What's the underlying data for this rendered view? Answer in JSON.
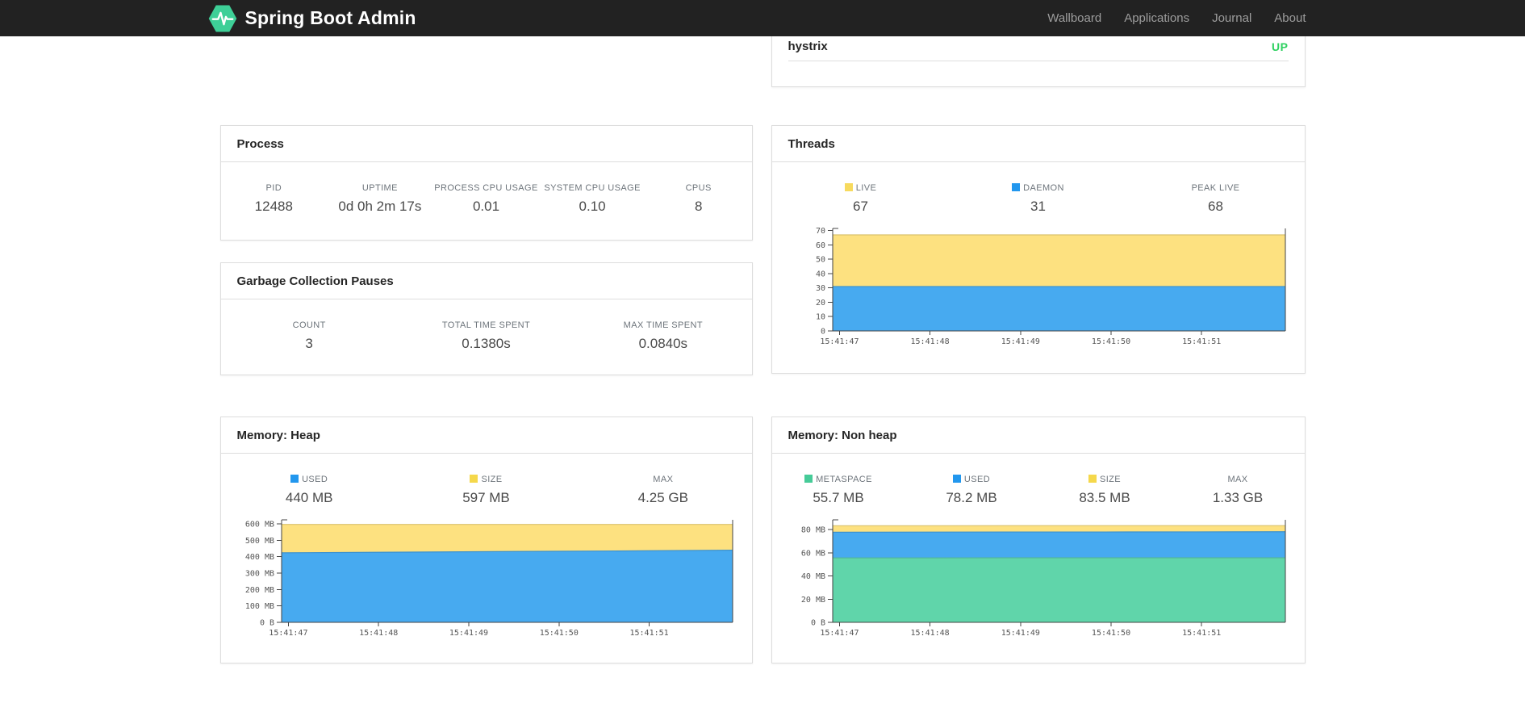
{
  "navbar": {
    "brand": "Spring Boot Admin",
    "items": [
      {
        "label": "Wallboard"
      },
      {
        "label": "Applications"
      },
      {
        "label": "Journal"
      },
      {
        "label": "About"
      }
    ]
  },
  "colors": {
    "brand_green": "#3ecf97",
    "status_up": "#2ed160",
    "chart_yellow": "#fde180",
    "chart_blue": "#47aaf0",
    "chart_green": "#60d5aa",
    "navbar_bg": "#222222"
  },
  "health_card": {
    "service": "hystrix",
    "status": "UP"
  },
  "cards": {
    "process": {
      "title": "Process",
      "stats": [
        {
          "label": "PID",
          "value": "12488"
        },
        {
          "label": "UPTIME",
          "value": "0d 0h 2m 17s"
        },
        {
          "label": "PROCESS CPU USAGE",
          "value": "0.01"
        },
        {
          "label": "SYSTEM CPU USAGE",
          "value": "0.10"
        },
        {
          "label": "CPUS",
          "value": "8"
        }
      ]
    },
    "gc": {
      "title": "Garbage Collection Pauses",
      "stats": [
        {
          "label": "COUNT",
          "value": "3"
        },
        {
          "label": "TOTAL TIME SPENT",
          "value": "0.1380s"
        },
        {
          "label": "MAX TIME SPENT",
          "value": "0.0840s"
        }
      ]
    },
    "threads": {
      "title": "Threads",
      "stats": [
        {
          "label": "LIVE",
          "value": "67",
          "swatch": "#f7da5e"
        },
        {
          "label": "DAEMON",
          "value": "31",
          "swatch": "#2297ee"
        },
        {
          "label": "PEAK LIVE",
          "value": "68"
        }
      ]
    },
    "heap": {
      "title": "Memory: Heap",
      "stats": [
        {
          "label": "USED",
          "value": "440 MB",
          "swatch": "#2297ee"
        },
        {
          "label": "SIZE",
          "value": "597 MB",
          "swatch": "#f5d84b"
        },
        {
          "label": "MAX",
          "value": "4.25 GB"
        }
      ]
    },
    "nonheap": {
      "title": "Memory: Non heap",
      "stats": [
        {
          "label": "METASPACE",
          "value": "55.7 MB",
          "swatch": "#46cb98"
        },
        {
          "label": "USED",
          "value": "78.2 MB",
          "swatch": "#2297ee"
        },
        {
          "label": "SIZE",
          "value": "83.5 MB",
          "swatch": "#f5d84b"
        },
        {
          "label": "MAX",
          "value": "1.33 GB"
        }
      ]
    }
  },
  "chart_data": [
    {
      "id": "threads",
      "type": "area",
      "title": "Threads",
      "x_labels": [
        "15:41:47",
        "15:41:48",
        "15:41:49",
        "15:41:50",
        "15:41:51"
      ],
      "ylim": [
        0,
        71.5
      ],
      "yticks": {
        "values": [
          0,
          10,
          20,
          30,
          40,
          50,
          60,
          70
        ],
        "labels": [
          "0",
          "10",
          "20",
          "30",
          "40",
          "50",
          "60",
          "70"
        ]
      },
      "series": [
        {
          "name": "LIVE",
          "color": "#fde180",
          "values": [
            67,
            67,
            67,
            67,
            67,
            67
          ]
        },
        {
          "name": "DAEMON",
          "color": "#47aaf0",
          "values": [
            31,
            31,
            31,
            31,
            31,
            31
          ]
        }
      ],
      "stack_mode": "absolute",
      "grid": false,
      "legend_position": "above-as-stats"
    },
    {
      "id": "memory-heap",
      "type": "area",
      "title": "Memory: Heap",
      "x_labels": [
        "15:41:47",
        "15:41:48",
        "15:41:49",
        "15:41:50",
        "15:41:51"
      ],
      "ylim": [
        0,
        625
      ],
      "yticks": {
        "values": [
          0,
          100,
          200,
          300,
          400,
          500,
          600
        ],
        "labels": [
          "0 B",
          "100 MB",
          "200 MB",
          "300 MB",
          "400 MB",
          "500 MB",
          "600 MB"
        ]
      },
      "series": [
        {
          "name": "SIZE",
          "color": "#fde180",
          "values": [
            597,
            597,
            597,
            597,
            597,
            597
          ]
        },
        {
          "name": "USED",
          "color": "#47aaf0",
          "values": [
            424,
            427,
            430,
            433,
            436,
            440
          ]
        }
      ],
      "stack_mode": "absolute",
      "grid": false,
      "legend_position": "above-as-stats"
    },
    {
      "id": "memory-nonheap",
      "type": "area",
      "title": "Memory: Non heap",
      "x_labels": [
        "15:41:47",
        "15:41:48",
        "15:41:49",
        "15:41:50",
        "15:41:51"
      ],
      "ylim": [
        0,
        88.5
      ],
      "yticks": {
        "values": [
          0,
          20,
          40,
          60,
          80
        ],
        "labels": [
          "0 B",
          "20 MB",
          "40 MB",
          "60 MB",
          "80 MB"
        ]
      },
      "series": [
        {
          "name": "SIZE",
          "color": "#fde180",
          "values": [
            83.4,
            83.4,
            83.5,
            83.5,
            83.5,
            83.5
          ]
        },
        {
          "name": "USED",
          "color": "#47aaf0",
          "values": [
            77.8,
            77.9,
            78.0,
            78.0,
            78.1,
            78.2
          ]
        },
        {
          "name": "METASPACE",
          "color": "#60d5aa",
          "values": [
            55.6,
            55.6,
            55.7,
            55.7,
            55.7,
            55.7
          ]
        }
      ],
      "stack_mode": "absolute",
      "grid": false,
      "legend_position": "above-as-stats"
    }
  ]
}
